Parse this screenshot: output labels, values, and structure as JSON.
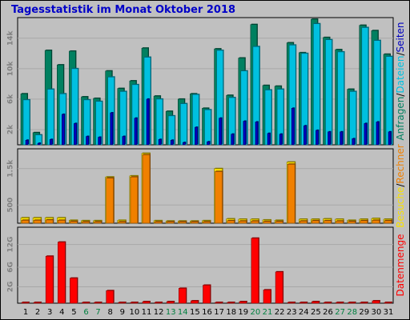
{
  "title": "Tagesstatistik im Monat Oktober 2018",
  "colors": {
    "anfragen": "#008060",
    "dateien": "#00c0e0",
    "seiten": "#0000c0",
    "rechner": "#f08000",
    "besuche": "#f8e000",
    "datenmenge": "#ff0000",
    "weekend_label": "#008040",
    "weekday_label": "#000000"
  },
  "chart_data": [
    {
      "type": "bar",
      "panel": "requests",
      "x": [
        1,
        2,
        3,
        4,
        5,
        6,
        7,
        8,
        9,
        10,
        11,
        12,
        13,
        14,
        15,
        16,
        17,
        18,
        19,
        20,
        21,
        22,
        23,
        24,
        25,
        26,
        27,
        28,
        29,
        30,
        31
      ],
      "y_ticks": [
        "2k",
        "6k",
        "10k",
        "14k"
      ],
      "y_tick_values": [
        2000,
        6000,
        10000,
        14000
      ],
      "ylim": [
        0,
        16500
      ],
      "side_label_parts": [
        {
          "text": "Anfragen",
          "color": "#008060"
        },
        {
          "text": "/",
          "color": "#000000"
        },
        {
          "text": "Dateien",
          "color": "#00c0e0"
        },
        {
          "text": "/",
          "color": "#000000"
        },
        {
          "text": "Seiten",
          "color": "#0000c0"
        }
      ],
      "series": [
        {
          "name": "Anfragen",
          "color": "#008060",
          "values": [
            6700,
            1600,
            12400,
            10500,
            12300,
            6300,
            6100,
            9700,
            7400,
            8400,
            12700,
            6400,
            4400,
            6000,
            6700,
            4800,
            12600,
            6500,
            11400,
            15800,
            7800,
            7700,
            13400,
            12100,
            16500,
            14100,
            12500,
            7300,
            15700,
            15000,
            11900
          ]
        },
        {
          "name": "Dateien",
          "color": "#00c0e0",
          "values": [
            5900,
            1300,
            7300,
            6700,
            10000,
            5900,
            5700,
            8900,
            7000,
            7900,
            11500,
            6000,
            3800,
            5400,
            6600,
            4600,
            12400,
            6200,
            9700,
            12900,
            7200,
            7300,
            13100,
            12000,
            15900,
            13800,
            12200,
            7000,
            15400,
            13700,
            11600
          ]
        },
        {
          "name": "Seiten",
          "color": "#0000c0",
          "values": [
            600,
            200,
            700,
            4000,
            2800,
            1100,
            1000,
            4200,
            1100,
            3500,
            6000,
            700,
            600,
            300,
            2300,
            400,
            3500,
            1400,
            3100,
            3000,
            1500,
            1400,
            4800,
            2500,
            1900,
            1700,
            1700,
            800,
            2800,
            3000,
            1700
          ]
        }
      ]
    },
    {
      "type": "bar",
      "panel": "visits",
      "x": [
        1,
        2,
        3,
        4,
        5,
        6,
        7,
        8,
        9,
        10,
        11,
        12,
        13,
        14,
        15,
        16,
        17,
        18,
        19,
        20,
        21,
        22,
        23,
        24,
        25,
        26,
        27,
        28,
        29,
        30,
        31
      ],
      "y_ticks": [
        "500",
        "1.5k"
      ],
      "y_tick_values": [
        500,
        1500
      ],
      "ylim": [
        0,
        2000
      ],
      "side_label_parts": [
        {
          "text": "Besuche",
          "color": "#f8e000"
        },
        {
          "text": "/",
          "color": "#000000"
        },
        {
          "text": "Rechner",
          "color": "#f08000"
        }
      ],
      "series": [
        {
          "name": "Besuche",
          "color": "#f8e000",
          "values": [
            150,
            150,
            150,
            150,
            80,
            70,
            70,
            1270,
            80,
            1300,
            1920,
            70,
            60,
            60,
            60,
            70,
            1500,
            120,
            110,
            110,
            90,
            80,
            1680,
            110,
            110,
            120,
            110,
            80,
            110,
            130,
            110
          ]
        },
        {
          "name": "Rechner",
          "color": "#f08000",
          "values": [
            80,
            80,
            90,
            80,
            50,
            40,
            40,
            1240,
            40,
            1270,
            1880,
            40,
            40,
            40,
            40,
            40,
            1420,
            70,
            60,
            60,
            50,
            50,
            1620,
            60,
            70,
            70,
            60,
            50,
            70,
            80,
            70
          ]
        }
      ]
    },
    {
      "type": "bar",
      "panel": "volume",
      "x": [
        1,
        2,
        3,
        4,
        5,
        6,
        7,
        8,
        9,
        10,
        11,
        12,
        13,
        14,
        15,
        16,
        17,
        18,
        19,
        20,
        21,
        22,
        23,
        24,
        25,
        26,
        27,
        28,
        29,
        30,
        31
      ],
      "y_ticks": [
        "2G",
        "6G",
        "12G"
      ],
      "y_tick_values": [
        2.1,
        4.6,
        7.5
      ],
      "ylim": [
        0,
        9.5
      ],
      "side_label_parts": [
        {
          "text": "Datenmenge",
          "color": "#ff0000"
        }
      ],
      "series": [
        {
          "name": "Datenmenge",
          "color": "#ff0000",
          "values": [
            0.1,
            0.1,
            6.0,
            7.8,
            3.2,
            0.1,
            0.1,
            1.6,
            0.1,
            0.1,
            0.2,
            0.1,
            0.2,
            1.9,
            0.3,
            2.3,
            0.1,
            0.1,
            0.2,
            8.3,
            1.7,
            4.0,
            0.1,
            0.1,
            0.2,
            0.1,
            0.1,
            0.1,
            0.1,
            0.3,
            0.1
          ]
        }
      ]
    }
  ],
  "x_labels": [
    "1",
    "2",
    "3",
    "4",
    "5",
    "6",
    "7",
    "8",
    "9",
    "10",
    "11",
    "12",
    "13",
    "14",
    "15",
    "16",
    "17",
    "18",
    "19",
    "20",
    "21",
    "22",
    "23",
    "24",
    "25",
    "26",
    "27",
    "28",
    "29",
    "30",
    "31"
  ],
  "weekend_days": [
    6,
    7,
    13,
    14,
    20,
    21,
    27,
    28
  ]
}
